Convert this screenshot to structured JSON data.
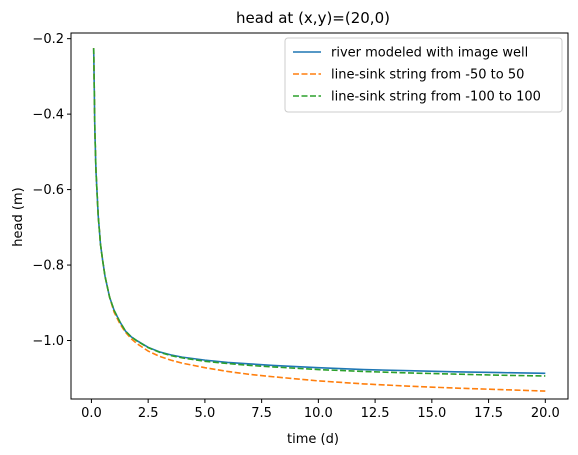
{
  "chart_data": {
    "type": "line",
    "title": "head at (x,y)=(20,0)",
    "xlabel": "time (d)",
    "ylabel": "head (m)",
    "xlim": [
      -0.9,
      21.0
    ],
    "ylim": [
      -1.155,
      -0.185
    ],
    "xticks": [
      0.0,
      2.5,
      5.0,
      7.5,
      10.0,
      12.5,
      15.0,
      17.5,
      20.0
    ],
    "xtick_labels": [
      "0.0",
      "2.5",
      "5.0",
      "7.5",
      "10.0",
      "12.5",
      "15.0",
      "17.5",
      "20.0"
    ],
    "yticks": [
      -1.0,
      -0.8,
      -0.6,
      -0.4,
      -0.2
    ],
    "ytick_labels": [
      "−1.0",
      "−0.8",
      "−0.6",
      "−0.4",
      "−0.2"
    ],
    "grid": false,
    "legend_position": "top-right",
    "series": [
      {
        "name": "river modeled with image well",
        "color": "#1f77b4",
        "dash": "solid",
        "x": [
          0.1,
          0.15,
          0.2,
          0.3,
          0.4,
          0.5,
          0.6,
          0.8,
          1.0,
          1.25,
          1.5,
          1.75,
          2.0,
          2.5,
          3.0,
          3.5,
          4.0,
          5.0,
          6.0,
          7.0,
          8.0,
          10.0,
          12.0,
          14.0,
          16.0,
          18.0,
          20.0
        ],
        "y": [
          -0.225,
          -0.44,
          -0.55,
          -0.67,
          -0.745,
          -0.79,
          -0.83,
          -0.885,
          -0.92,
          -0.95,
          -0.975,
          -0.99,
          -1.0,
          -1.018,
          -1.03,
          -1.038,
          -1.044,
          -1.052,
          -1.058,
          -1.062,
          -1.066,
          -1.072,
          -1.077,
          -1.08,
          -1.083,
          -1.085,
          -1.087
        ]
      },
      {
        "name": "line-sink string from -50 to 50",
        "color": "#ff7f0e",
        "dash": "dashed",
        "x": [
          0.1,
          0.15,
          0.2,
          0.3,
          0.4,
          0.5,
          0.6,
          0.8,
          1.0,
          1.25,
          1.5,
          1.75,
          2.0,
          2.5,
          3.0,
          3.5,
          4.0,
          5.0,
          6.0,
          7.0,
          8.0,
          10.0,
          12.0,
          14.0,
          16.0,
          18.0,
          20.0
        ],
        "y": [
          -0.225,
          -0.44,
          -0.55,
          -0.67,
          -0.745,
          -0.79,
          -0.83,
          -0.885,
          -0.925,
          -0.955,
          -0.978,
          -0.995,
          -1.008,
          -1.028,
          -1.042,
          -1.052,
          -1.06,
          -1.072,
          -1.082,
          -1.09,
          -1.096,
          -1.107,
          -1.115,
          -1.121,
          -1.126,
          -1.13,
          -1.134
        ]
      },
      {
        "name": "line-sink string from -100 to 100",
        "color": "#2ca02c",
        "dash": "dashed",
        "x": [
          0.1,
          0.15,
          0.2,
          0.3,
          0.4,
          0.5,
          0.6,
          0.8,
          1.0,
          1.25,
          1.5,
          1.75,
          2.0,
          2.5,
          3.0,
          3.5,
          4.0,
          5.0,
          6.0,
          7.0,
          8.0,
          10.0,
          12.0,
          14.0,
          16.0,
          18.0,
          20.0
        ],
        "y": [
          -0.225,
          -0.44,
          -0.55,
          -0.67,
          -0.745,
          -0.79,
          -0.83,
          -0.885,
          -0.92,
          -0.95,
          -0.975,
          -0.99,
          -1.001,
          -1.019,
          -1.031,
          -1.04,
          -1.046,
          -1.055,
          -1.061,
          -1.066,
          -1.07,
          -1.077,
          -1.082,
          -1.086,
          -1.089,
          -1.092,
          -1.094
        ]
      }
    ]
  }
}
